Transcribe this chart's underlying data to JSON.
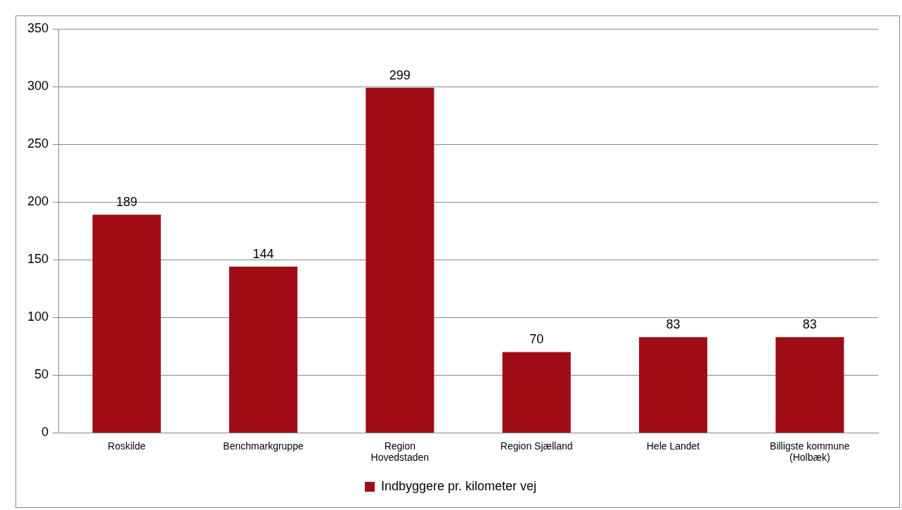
{
  "chart_data": {
    "type": "bar",
    "categories": [
      "Roskilde",
      "Benchmarkgruppe",
      "Region Hovedstaden",
      "Region Sjælland",
      "Hele Landet",
      "Billigste kommune (Holbæk)"
    ],
    "series": [
      {
        "name": "Indbyggere pr. kilometer vej",
        "color": "#a00c16",
        "values": [
          189,
          144,
          299,
          70,
          83,
          83
        ]
      }
    ],
    "ylim": [
      0,
      350
    ],
    "yticks": [
      0,
      50,
      100,
      150,
      200,
      250,
      300,
      350
    ],
    "grid": "y",
    "legend": "bottom",
    "data_labels": true
  }
}
